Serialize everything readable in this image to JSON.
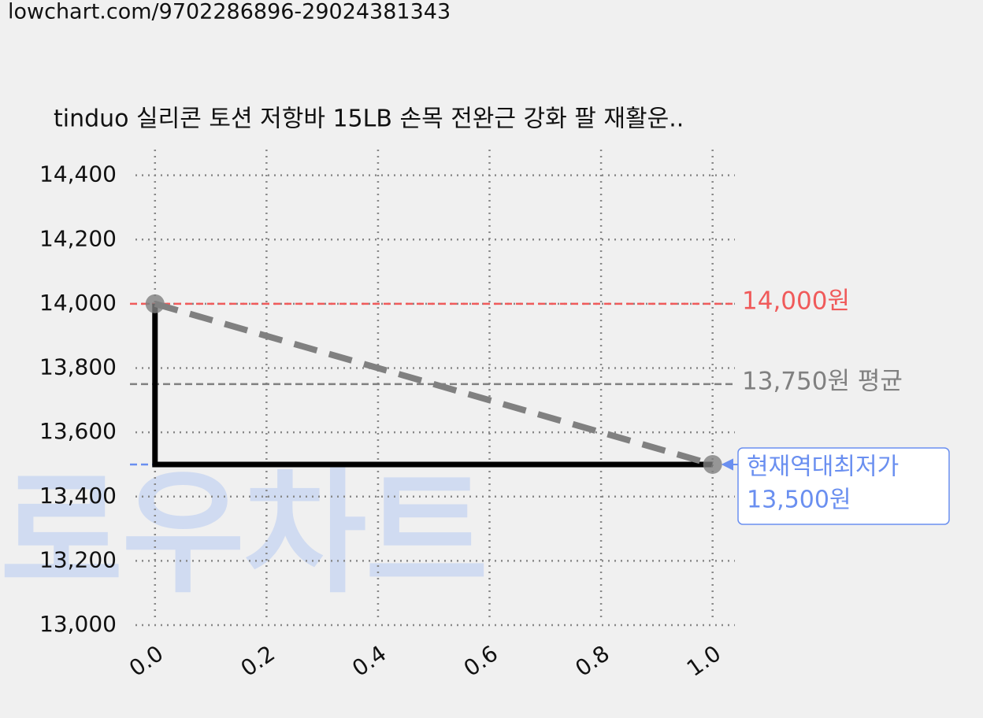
{
  "url": "lowchart.com/9702286896-29024381343",
  "chart_data": {
    "type": "line",
    "title": "tinduo 실리콘 토션 저항바 15LB 손목 전완근 강화 팔 재활운..",
    "watermark": "로우차트",
    "xlim": [
      -0.035,
      1.04
    ],
    "ylim": [
      13000,
      14480
    ],
    "xticks": [
      {
        "value": 0,
        "label": "0.0"
      },
      {
        "value": 0.2,
        "label": "0.2"
      },
      {
        "value": 0.4,
        "label": "0.4"
      },
      {
        "value": 0.6,
        "label": "0.6"
      },
      {
        "value": 0.8,
        "label": "0.8"
      },
      {
        "value": 1,
        "label": "1.0"
      }
    ],
    "yticks": [
      {
        "value": 13000,
        "label": "13,000"
      },
      {
        "value": 13200,
        "label": "13,200"
      },
      {
        "value": 13400,
        "label": "13,400"
      },
      {
        "value": 13600,
        "label": "13,600"
      },
      {
        "value": 13800,
        "label": "13,800"
      },
      {
        "value": 14000,
        "label": "14,000"
      },
      {
        "value": 14200,
        "label": "14,200"
      },
      {
        "value": 14400,
        "label": "14,400"
      }
    ],
    "grid": true,
    "series": [
      {
        "style": "step",
        "color": "#000000",
        "x": [
          0,
          0,
          1
        ],
        "values": [
          14000,
          13500,
          13500
        ]
      },
      {
        "style": "dashed",
        "color": "#808080",
        "x": [
          0,
          1
        ],
        "values": [
          14000,
          13500
        ]
      }
    ],
    "reference_lines": [
      {
        "value": 14000,
        "label": "14,000원",
        "color": "#f05a5a"
      },
      {
        "value": 13750,
        "label": "13,750원 평균",
        "color": "#808080"
      },
      {
        "value": 13500,
        "note": "현재역대최저가",
        "label": "13,500원",
        "color": "#6a8ff0"
      }
    ]
  }
}
